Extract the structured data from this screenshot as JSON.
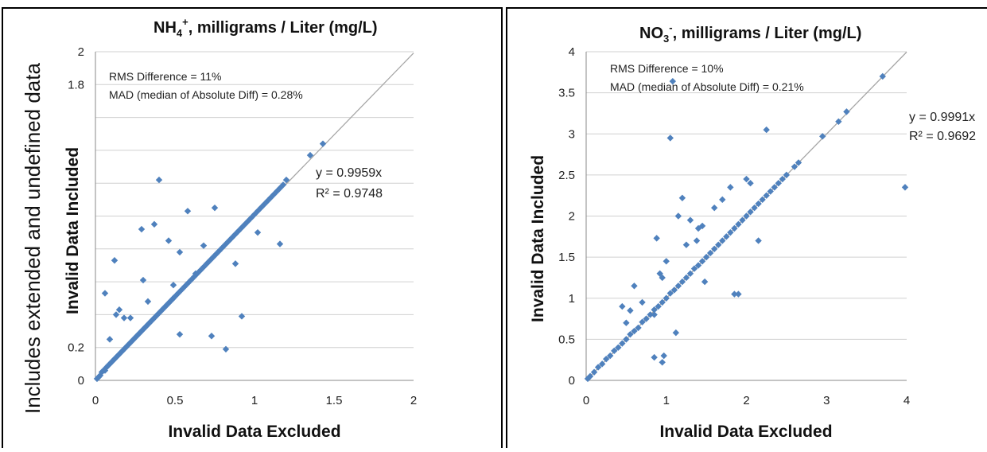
{
  "side_label": "Includes extended and undefined data",
  "chart_data": [
    {
      "type": "scatter",
      "title_main": "NH",
      "title_sub": "4",
      "title_sup": "+",
      "title_rest": ", milligrams / Liter (mg/L)",
      "xlabel": "Invalid Data Excluded",
      "ylabel": "Invalid Data Included",
      "xlim": [
        0,
        2
      ],
      "ylim": [
        0,
        2
      ],
      "xticks": [
        "0",
        "0.5",
        "1",
        "1.5",
        "2"
      ],
      "yticks_visible": [
        "0",
        "0.2",
        "1.8",
        "2"
      ],
      "grid": true,
      "marker_color": "#4f81bd",
      "trendline_color": "#a6a6a6",
      "stats": [
        "RMS Difference = 11%",
        "MAD (median of Absolute Diff) = 0.28%"
      ],
      "fit_equation": "y = 0.9959x",
      "fit_r2": "R² = 0.9748",
      "slope": 0.9959,
      "series": [
        {
          "x": [
            0.01,
            0.02,
            0.03,
            0.04,
            0.05,
            0.06,
            0.07,
            0.08,
            0.09,
            0.1,
            0.11,
            0.12,
            0.13,
            0.14,
            0.15,
            0.16,
            0.17,
            0.18,
            0.19,
            0.2,
            0.21,
            0.22,
            0.23,
            0.24,
            0.25,
            0.26,
            0.27,
            0.28,
            0.29,
            0.3,
            0.31,
            0.32,
            0.33,
            0.34,
            0.35,
            0.36,
            0.37,
            0.38,
            0.39,
            0.4,
            0.41,
            0.42,
            0.43,
            0.44,
            0.45,
            0.46,
            0.47,
            0.48,
            0.49,
            0.5,
            0.52,
            0.54,
            0.56,
            0.58,
            0.6,
            0.62,
            0.64,
            0.66,
            0.68,
            0.7,
            0.72,
            0.74,
            0.76,
            0.78,
            0.8,
            0.82,
            0.84,
            0.86,
            0.88,
            0.9,
            0.92,
            0.94,
            0.96,
            0.98,
            1.0,
            1.02,
            1.04,
            1.06,
            1.08,
            1.1,
            1.12,
            1.14,
            1.16,
            1.18,
            1.2,
            1.35,
            1.43,
            0.4,
            0.58,
            0.75,
            0.37,
            0.12,
            0.06,
            0.29,
            0.46,
            0.53,
            0.82,
            0.92,
            0.63,
            0.53,
            0.33,
            0.49,
            0.22,
            0.3,
            0.15,
            0.73,
            0.88,
            0.68,
            1.02,
            1.16,
            0.09,
            0.13,
            0.18
          ],
          "y": [
            0.01,
            0.02,
            0.03,
            0.05,
            0.06,
            0.06,
            0.08,
            0.09,
            0.1,
            0.11,
            0.12,
            0.13,
            0.14,
            0.15,
            0.16,
            0.17,
            0.18,
            0.19,
            0.2,
            0.21,
            0.22,
            0.23,
            0.24,
            0.25,
            0.26,
            0.27,
            0.28,
            0.29,
            0.3,
            0.31,
            0.32,
            0.33,
            0.34,
            0.35,
            0.36,
            0.37,
            0.38,
            0.39,
            0.4,
            0.41,
            0.42,
            0.43,
            0.44,
            0.45,
            0.46,
            0.47,
            0.48,
            0.49,
            0.5,
            0.51,
            0.53,
            0.55,
            0.57,
            0.59,
            0.61,
            0.63,
            0.65,
            0.67,
            0.69,
            0.71,
            0.73,
            0.75,
            0.77,
            0.79,
            0.81,
            0.83,
            0.85,
            0.87,
            0.89,
            0.91,
            0.93,
            0.95,
            0.97,
            0.99,
            1.01,
            1.03,
            1.05,
            1.07,
            1.09,
            1.11,
            1.13,
            1.15,
            1.17,
            1.19,
            1.22,
            1.37,
            1.44,
            1.22,
            1.03,
            1.05,
            0.95,
            0.73,
            0.53,
            0.92,
            0.85,
            0.78,
            0.19,
            0.39,
            0.65,
            0.28,
            0.48,
            0.58,
            0.38,
            0.61,
            0.43,
            0.27,
            0.71,
            0.82,
            0.9,
            0.83,
            0.25,
            0.4,
            0.38
          ]
        }
      ]
    },
    {
      "type": "scatter",
      "title_main": "NO",
      "title_sub": "3",
      "title_sup": "-",
      "title_rest": ", milligrams / Liter (mg/L)",
      "xlabel": "Invalid Data Excluded",
      "ylabel": "Invalid Data Included",
      "xlim": [
        0,
        4
      ],
      "ylim": [
        0,
        4
      ],
      "xticks": [
        "0",
        "1",
        "2",
        "3",
        "4"
      ],
      "yticks_visible": [
        "0",
        "0.5",
        "1",
        "1.5",
        "2",
        "2.5",
        "3",
        "3.5",
        "4"
      ],
      "grid": true,
      "marker_color": "#4f81bd",
      "trendline_color": "#a6a6a6",
      "stats": [
        "RMS Difference = 10%",
        "MAD (median of Absolute Diff) = 0.21%"
      ],
      "fit_equation": "y = 0.9991x",
      "fit_r2": "R² = 0.9692",
      "slope": 0.9991,
      "series": [
        {
          "x": [
            0.02,
            0.05,
            0.1,
            0.15,
            0.2,
            0.25,
            0.3,
            0.35,
            0.4,
            0.45,
            0.5,
            0.55,
            0.6,
            0.65,
            0.7,
            0.75,
            0.8,
            0.85,
            0.9,
            0.95,
            1.0,
            1.05,
            1.1,
            1.15,
            1.2,
            1.25,
            1.3,
            1.35,
            1.4,
            1.45,
            1.5,
            1.55,
            1.6,
            1.65,
            1.7,
            1.75,
            1.8,
            1.85,
            1.9,
            1.95,
            2.0,
            2.05,
            2.1,
            2.15,
            2.2,
            2.25,
            2.3,
            2.35,
            2.4,
            2.45,
            2.5,
            2.6,
            2.65,
            2.95,
            3.15,
            3.25,
            3.7,
            3.98,
            1.08,
            1.05,
            2.25,
            0.88,
            1.2,
            1.15,
            0.95,
            0.97,
            0.85,
            1.12,
            1.3,
            1.45,
            1.85,
            1.9,
            1.8,
            2.05,
            1.6,
            1.25,
            0.6,
            0.95,
            1.0,
            0.92,
            0.85,
            0.7,
            0.55,
            1.48,
            2.15,
            2.0,
            1.7,
            1.38,
            0.5,
            0.45,
            1.4
          ],
          "y": [
            0.02,
            0.05,
            0.1,
            0.16,
            0.2,
            0.26,
            0.3,
            0.36,
            0.4,
            0.45,
            0.5,
            0.56,
            0.6,
            0.64,
            0.71,
            0.75,
            0.8,
            0.86,
            0.9,
            0.95,
            1.0,
            1.06,
            1.1,
            1.15,
            1.2,
            1.25,
            1.3,
            1.36,
            1.4,
            1.45,
            1.5,
            1.55,
            1.6,
            1.65,
            1.7,
            1.75,
            1.8,
            1.85,
            1.9,
            1.95,
            2.0,
            2.05,
            2.1,
            2.15,
            2.2,
            2.25,
            2.3,
            2.35,
            2.4,
            2.45,
            2.5,
            2.6,
            2.65,
            2.97,
            3.15,
            3.27,
            3.7,
            2.35,
            3.64,
            2.95,
            3.05,
            1.73,
            2.22,
            2.0,
            0.22,
            0.3,
            0.28,
            0.58,
            1.95,
            1.88,
            1.05,
            1.05,
            2.35,
            2.4,
            2.1,
            1.65,
            1.15,
            1.25,
            1.45,
            1.3,
            0.8,
            0.95,
            0.85,
            1.2,
            1.7,
            2.45,
            2.2,
            1.7,
            0.7,
            0.9,
            1.85
          ]
        }
      ]
    }
  ]
}
